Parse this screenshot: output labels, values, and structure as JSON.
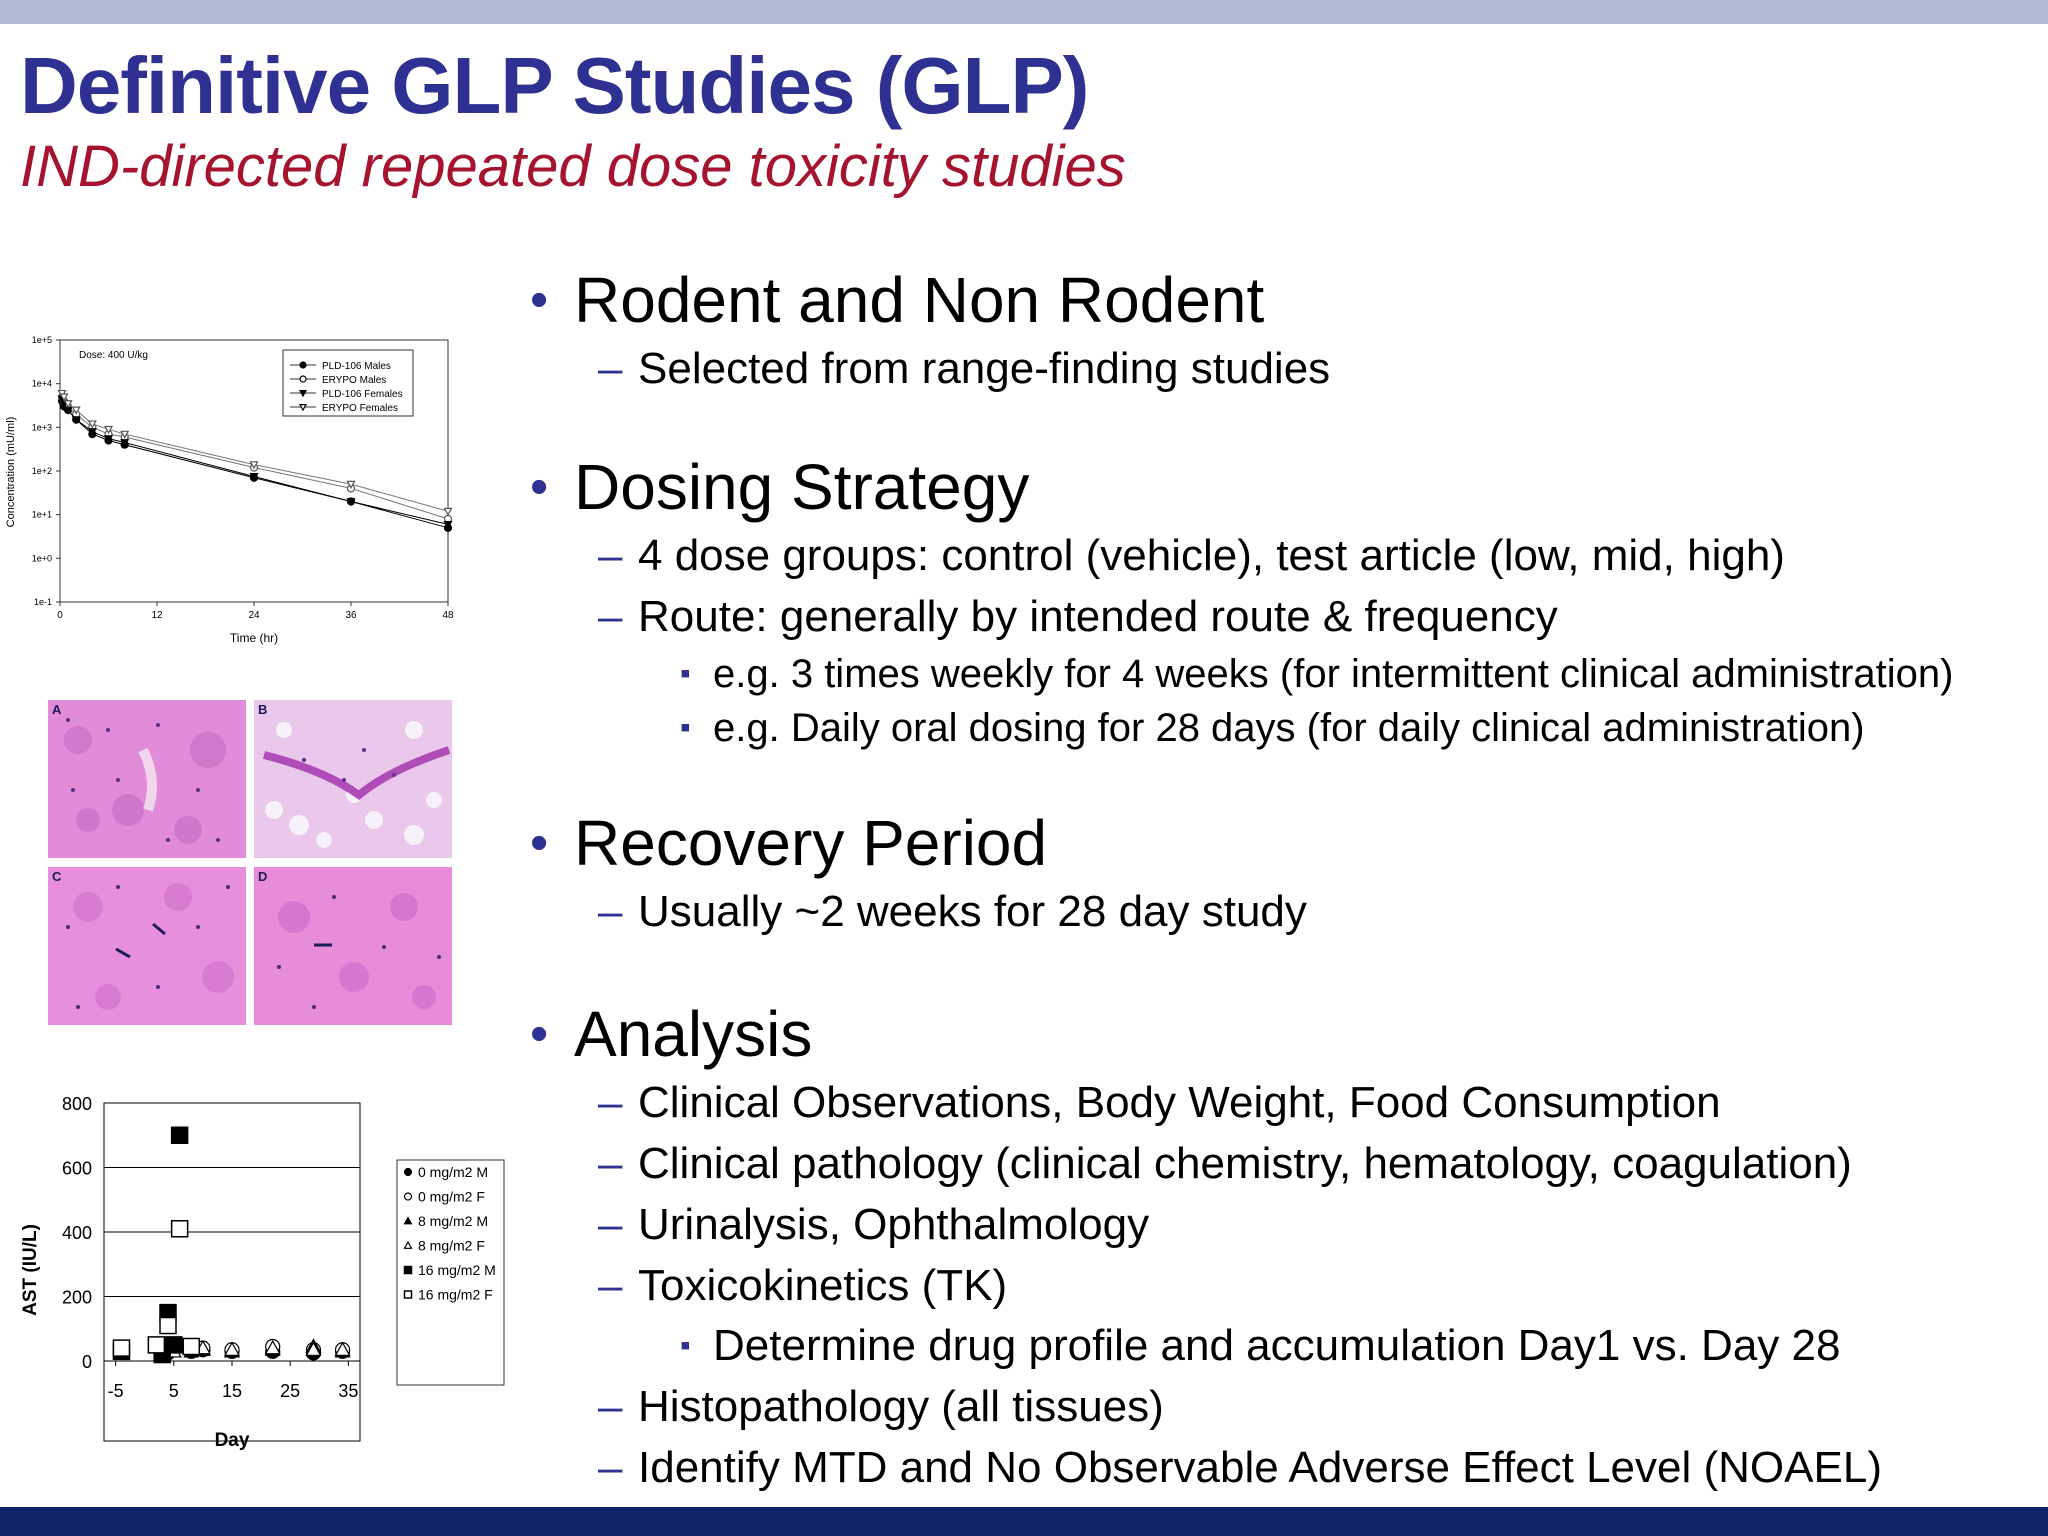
{
  "title": "Definitive GLP Studies (GLP)",
  "subtitle": "IND-directed repeated dose toxicity studies",
  "bullets": {
    "rodent": {
      "heading": "Rodent and Non Rodent",
      "items": [
        "Selected from range-finding studies"
      ]
    },
    "dosing": {
      "heading": "Dosing Strategy",
      "item1": "4 dose groups: control (vehicle), test article (low, mid, high)",
      "item2": "Route: generally by intended route & frequency",
      "sub": [
        "e.g. 3 times weekly for 4 weeks (for intermittent clinical administration)",
        "e.g. Daily oral dosing for 28 days (for daily clinical administration)"
      ]
    },
    "recovery": {
      "heading": "Recovery Period",
      "items": [
        "Usually ~2 weeks for 28 day study"
      ]
    },
    "analysis": {
      "heading": "Analysis",
      "items": [
        "Clinical Observations, Body Weight, Food Consumption",
        "Clinical pathology (clinical chemistry, hematology, coagulation)",
        "Urinalysis, Ophthalmology",
        "Toxicokinetics (TK)",
        "Histopathology (all tissues)",
        "Identify MTD and No Observable Adverse Effect Level (NOAEL)"
      ],
      "tk_sub": "Determine drug profile and accumulation Day1 vs. Day 28"
    }
  },
  "histology": {
    "panels": [
      "A",
      "B",
      "C",
      "D"
    ]
  },
  "chart_data": [
    {
      "type": "line",
      "annotation": "Dose: 400 U/kg",
      "xlabel": "Time (hr)",
      "ylabel": "Concentration (mU/ml)",
      "xlim": [
        0,
        48
      ],
      "x_ticks": [
        "0",
        "12",
        "24",
        "36",
        "48"
      ],
      "y_scale": "log",
      "y_ticks": [
        "1e+5",
        "1e+4",
        "1e+3",
        "1e+2",
        "1e+1",
        "1e+0",
        "1e-1"
      ],
      "legend_position": "top-right",
      "series": [
        {
          "name": "PLD-106 Males",
          "marker": "filled-circle",
          "x": [
            0.25,
            0.5,
            1,
            2,
            4,
            6,
            8,
            24,
            36,
            48
          ],
          "y": [
            4000,
            3000,
            2500,
            1500,
            700,
            500,
            400,
            70,
            20,
            5
          ]
        },
        {
          "name": "ERYPO Males",
          "marker": "open-circle",
          "x": [
            0.25,
            0.5,
            1,
            2,
            4,
            6,
            8,
            24,
            36,
            48
          ],
          "y": [
            5000,
            4000,
            3000,
            2000,
            1000,
            700,
            600,
            120,
            40,
            8
          ]
        },
        {
          "name": "PLD-106 Females",
          "marker": "filled-triangle-down",
          "x": [
            0.25,
            0.5,
            1,
            2,
            4,
            6,
            8,
            24,
            36,
            48
          ],
          "y": [
            4500,
            3500,
            2500,
            1500,
            800,
            550,
            450,
            75,
            20,
            6
          ]
        },
        {
          "name": "ERYPO Females",
          "marker": "open-triangle-down",
          "x": [
            0.25,
            0.5,
            1,
            2,
            4,
            6,
            8,
            24,
            36,
            48
          ],
          "y": [
            6000,
            5000,
            3500,
            2500,
            1200,
            900,
            700,
            140,
            50,
            12
          ]
        }
      ]
    },
    {
      "type": "scatter",
      "xlabel": "Day",
      "ylabel": "AST (IU/L)",
      "xlim": [
        -5,
        35
      ],
      "ylim": [
        0,
        800
      ],
      "x_ticks": [
        -5,
        5,
        15,
        25,
        35
      ],
      "y_ticks": [
        0,
        200,
        400,
        600,
        800
      ],
      "grid": true,
      "legend_position": "right",
      "series": [
        {
          "name": "0 mg/m2 M",
          "marker": "filled-circle",
          "x": [
            -4,
            3,
            4,
            8,
            10,
            15,
            22,
            29,
            34
          ],
          "y": [
            30,
            20,
            25,
            30,
            35,
            30,
            30,
            25,
            30
          ]
        },
        {
          "name": "0 mg/m2 F",
          "marker": "open-circle",
          "x": [
            -4,
            3,
            5,
            8,
            10,
            15,
            22,
            29,
            34
          ],
          "y": [
            40,
            30,
            40,
            35,
            40,
            35,
            45,
            35,
            35
          ]
        },
        {
          "name": "8 mg/m2 M",
          "marker": "filled-triangle",
          "x": [
            3,
            4,
            8,
            10,
            15,
            22,
            29,
            34
          ],
          "y": [
            25,
            30,
            30,
            35,
            30,
            35,
            45,
            30
          ]
        },
        {
          "name": "8 mg/m2 F",
          "marker": "open-triangle",
          "x": [
            3,
            5,
            8,
            10,
            15,
            22,
            29,
            34
          ],
          "y": [
            35,
            30,
            40,
            40,
            35,
            40,
            35,
            35
          ]
        },
        {
          "name": "16 mg/m2 M",
          "marker": "filled-square",
          "x": [
            -4,
            3,
            4,
            5,
            6
          ],
          "y": [
            30,
            20,
            150,
            50,
            700
          ]
        },
        {
          "name": "16 mg/m2 F",
          "marker": "open-square",
          "x": [
            -4,
            2,
            4,
            6,
            8
          ],
          "y": [
            40,
            50,
            110,
            410,
            45
          ]
        }
      ]
    }
  ]
}
